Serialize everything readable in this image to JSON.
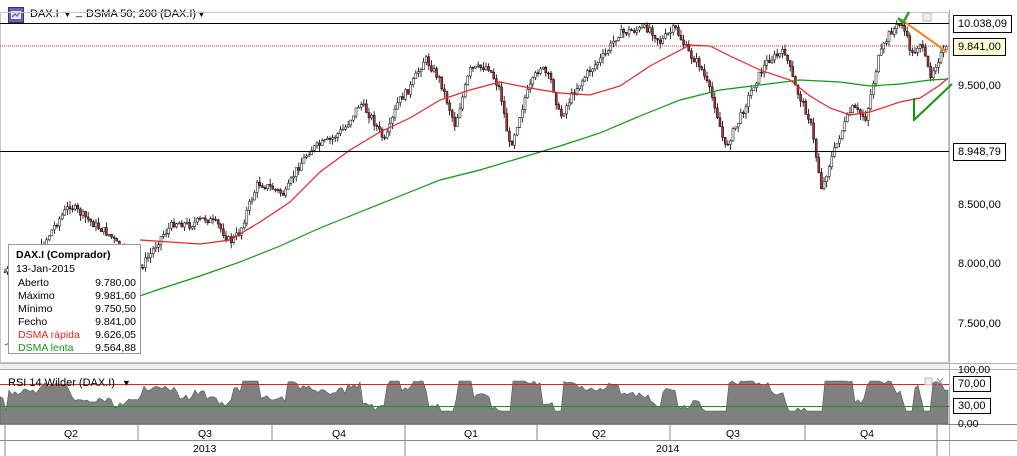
{
  "toolbar": {
    "symbol": "DAX.I",
    "indicator": "DSMA 50; 200 (DAX.I)",
    "separator": "_"
  },
  "price_axis": {
    "labels": [
      "9.500,00",
      "8.500,00",
      "8.000,00",
      "7.500,00"
    ],
    "current_price": "9.841,00",
    "high_line": "10.038,09",
    "low_line": "8.948,79"
  },
  "legend": {
    "title": "DAX.I (Comprador)",
    "date": "13-Jan-2015",
    "rows": [
      {
        "label": "Aberto",
        "value": "9.780,00"
      },
      {
        "label": "Máximo",
        "value": "9.981,60"
      },
      {
        "label": "Mínimo",
        "value": "9.750,50"
      },
      {
        "label": "Fecho",
        "value": "9.841,00"
      },
      {
        "label": "DSMA rápida",
        "value": "9.626,05"
      },
      {
        "label": "DSMA lenta",
        "value": "9.564,88"
      }
    ]
  },
  "rsi": {
    "title": "RSI 14 Wilder (DAX.I)",
    "axis_labels": [
      "100,00",
      "70,00",
      "30,00",
      "0,00"
    ]
  },
  "time_axis": {
    "quarters": [
      "Q2",
      "Q3",
      "Q4",
      "Q1",
      "Q2",
      "Q3",
      "Q4"
    ],
    "years": [
      "2013",
      "2014"
    ]
  },
  "colors": {
    "fast_ma": "#e8262a",
    "slow_ma": "#149614",
    "trendline_orange": "#f08a24",
    "trendline_green": "#149614",
    "rsi_fill": "#808080",
    "level_line": "#000000",
    "resistance_line": "#c0392b"
  },
  "icons": {
    "symbol_icon": "chart-symbol-icon",
    "dropdown": "chevron-down-icon"
  }
}
